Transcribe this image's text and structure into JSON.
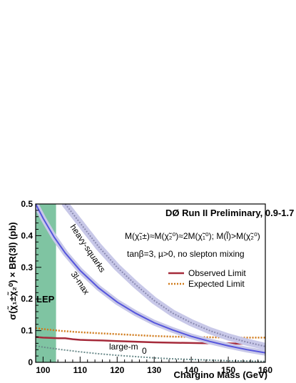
{
  "chart_data": {
    "type": "line",
    "title": "DØ Run II Preliminary, 0.9-1.7 fb⁻¹",
    "xlabel": "Chargino Mass (GeV)",
    "ylabel": "σ(χ̃₁±χ̃₂⁰) × BR(3l) (pb)",
    "xlim": [
      98,
      160
    ],
    "ylim": [
      0,
      0.5
    ],
    "xticks": [
      100,
      110,
      120,
      130,
      140,
      150,
      160
    ],
    "yticks": [
      0,
      0.1,
      0.2,
      0.3,
      0.4,
      0.5
    ],
    "annotations": {
      "mass_relation": "M(χ̃₁±)≈M(χ̃₂⁰)≈2M(χ̃₁⁰); M(l̃)>M(χ̃₂⁰)",
      "params": "tanβ=3, µ>0, no slepton mixing",
      "lep_label": "LEP",
      "lep_region": [
        98,
        103.5
      ]
    },
    "legend": {
      "position": "right",
      "entries": [
        "Observed Limit",
        "Expected Limit"
      ]
    },
    "colors": {
      "observed": "#a52a3a",
      "expected": "#d07a1a",
      "theory": "#5555dd",
      "band": "#c8c8e8",
      "large_m0": "#6a8a8a",
      "lep": "#7fc4a2"
    },
    "series": [
      {
        "name": "Observed Limit",
        "style": "solid",
        "x": [
          98,
          100,
          102,
          104,
          106,
          108,
          110,
          112,
          116,
          120,
          125,
          130,
          135,
          140,
          145,
          150,
          155,
          160
        ],
        "y": [
          0.08,
          0.078,
          0.077,
          0.076,
          0.076,
          0.073,
          0.071,
          0.07,
          0.069,
          0.067,
          0.065,
          0.063,
          0.062,
          0.061,
          0.06,
          0.06,
          0.058,
          0.056
        ]
      },
      {
        "name": "Expected Limit",
        "style": "dotted",
        "x": [
          98,
          100,
          105,
          110,
          115,
          120,
          125,
          130,
          135,
          140,
          145,
          150,
          155,
          160
        ],
        "y": [
          0.108,
          0.105,
          0.099,
          0.095,
          0.092,
          0.089,
          0.086,
          0.083,
          0.081,
          0.08,
          0.079,
          0.078,
          0.078,
          0.078
        ]
      },
      {
        "name": "3l-max",
        "style": "band",
        "x": [
          98,
          100,
          103,
          106,
          110,
          115,
          120,
          125,
          130,
          135,
          140,
          145,
          150,
          155,
          160
        ],
        "y": [
          0.5,
          0.455,
          0.395,
          0.345,
          0.29,
          0.235,
          0.19,
          0.155,
          0.125,
          0.102,
          0.082,
          0.066,
          0.052,
          0.04,
          0.03
        ]
      },
      {
        "name": "heavy-squarks",
        "style": "dotted-band",
        "x": [
          106,
          110,
          115,
          120,
          125,
          130,
          135,
          140,
          145,
          150,
          155,
          160
        ],
        "y": [
          0.5,
          0.44,
          0.365,
          0.3,
          0.245,
          0.195,
          0.155,
          0.125,
          0.1,
          0.08,
          0.064,
          0.05
        ]
      },
      {
        "name": "large-m0",
        "style": "dotted",
        "x": [
          98,
          100,
          105,
          110,
          115,
          120,
          125,
          130,
          135,
          140,
          145,
          150,
          155,
          160
        ],
        "y": [
          0.052,
          0.048,
          0.04,
          0.033,
          0.027,
          0.022,
          0.018,
          0.014,
          0.011,
          0.009,
          0.007,
          0.005,
          0.004,
          0.003
        ]
      }
    ],
    "curve_labels": {
      "heavy_squarks": "heavy-squarks",
      "trilepton_max": "3l-max",
      "large_m0": "large-m",
      "large_m0_sub": "0"
    }
  }
}
